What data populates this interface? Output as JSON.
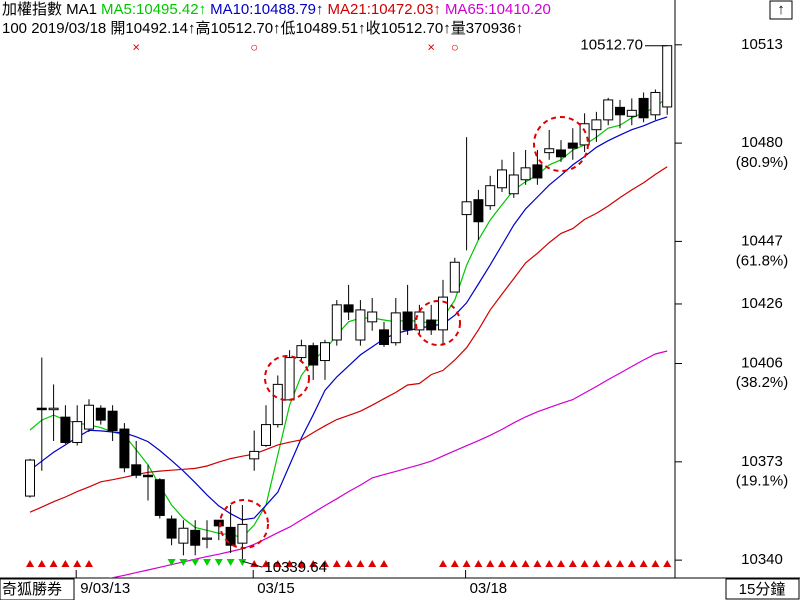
{
  "chart_data": {
    "type": "candlestick",
    "title": "加權指數 MA1",
    "info": "100 2019/03/18 開10492.14↑高10512.70↑低10489.51↑收10512.70↑量370936↑",
    "button_label": "↑",
    "source": "奇狐勝券",
    "interval": "15分鐘",
    "categories": [
      null,
      null,
      null,
      null,
      "9/03/13",
      null,
      null,
      null,
      null,
      null,
      null,
      null,
      null,
      null,
      null,
      null,
      null,
      null,
      null,
      "03/15",
      null,
      null,
      null,
      null,
      null,
      null,
      null,
      null,
      null,
      null,
      null,
      null,
      null,
      null,
      null,
      null,
      null,
      "03/18",
      null,
      null,
      null,
      null,
      null,
      null,
      null,
      null,
      null,
      null,
      null,
      null,
      null,
      null,
      null,
      null,
      null
    ],
    "top_marks": [
      null,
      null,
      null,
      null,
      null,
      null,
      null,
      null,
      null,
      "×",
      null,
      null,
      null,
      null,
      null,
      null,
      null,
      null,
      null,
      "○",
      null,
      null,
      null,
      null,
      null,
      null,
      null,
      null,
      null,
      null,
      null,
      null,
      null,
      null,
      "×",
      null,
      "○",
      null,
      null,
      null,
      null,
      null,
      null,
      null,
      null,
      null,
      null,
      null,
      null,
      null,
      null,
      null,
      null,
      null,
      null
    ],
    "open": [
      10361.5,
      10391,
      10390.5,
      10388,
      10379.5,
      10384,
      10391,
      10390,
      10384,
      10372,
      10368.5,
      10367,
      10353.8,
      10345.7,
      10350,
      10347,
      10353.4,
      10351,
      10345.7,
      10374,
      10378.5,
      10385.5,
      10393.8,
      10408,
      10412,
      10407,
      10413.9,
      10425.7,
      10413.9,
      10420,
      10417.3,
      10413,
      10423.3,
      10417.3,
      10420.6,
      10417.3,
      10430,
      10456,
      10461,
      10459,
      10465,
      10463,
      10467.7,
      10472.7,
      10476.8,
      10477.7,
      10480,
      10479.4,
      10484.5,
      10487.8,
      10492,
      10489,
      10495,
      10489.5,
      10492.14
    ],
    "high": [
      10374,
      10408,
      10399,
      10392,
      10392,
      10394,
      10392,
      10392,
      10386,
      10380,
      10372,
      10367.5,
      10355,
      10353.4,
      10353.4,
      10353.4,
      10353.4,
      10358.5,
      10358.5,
      10383.5,
      10392,
      10402,
      10410.5,
      10414,
      10413,
      10414,
      10427.3,
      10432.4,
      10427.3,
      10428,
      10420,
      10428,
      10432.4,
      10425.7,
      10425.7,
      10434.1,
      10441.5,
      10482,
      10464.3,
      10469,
      10474.4,
      10477,
      10477.7,
      10477.7,
      10484.4,
      10481,
      10485,
      10490,
      10490.5,
      10495.2,
      10494.5,
      10495,
      10497,
      10498,
      10512.7
    ],
    "low": [
      10361,
      10370,
      10380,
      10379,
      10378.5,
      10383,
      10385.5,
      10380,
      10369.5,
      10367.5,
      10360,
      10354,
      10345,
      10341.6,
      10341.6,
      10344,
      10346.7,
      10342.4,
      10339.64,
      10370,
      10378,
      10384.5,
      10393.8,
      10407,
      10400.5,
      10400.5,
      10412,
      10420.6,
      10412,
      10417,
      10411.6,
      10412,
      10415.6,
      10415.6,
      10415.6,
      10412,
      10430,
      10444,
      10447.5,
      10457.6,
      10463.6,
      10461.6,
      10466,
      10466,
      10474.4,
      10473.7,
      10474.4,
      10477,
      10480.4,
      10486,
      10485,
      10486,
      10487,
      10487.8,
      10489.51
    ],
    "close": [
      10373.6,
      10390.5,
      10391,
      10379.5,
      10386.5,
      10392,
      10387,
      10383.5,
      10371,
      10368.5,
      10368,
      10355,
      10347.4,
      10350.7,
      10345,
      10347.4,
      10351.5,
      10345,
      10352,
      10376.5,
      10385.5,
      10399,
      10408,
      10412,
      10405.5,
      10413,
      10425.7,
      10423.3,
      10424,
      10423.3,
      10412.4,
      10423,
      10417.3,
      10423.3,
      10417.3,
      10428.3,
      10440,
      10460.3,
      10453.6,
      10465.7,
      10471,
      10469.3,
      10471.7,
      10468.3,
      10478.1,
      10475.4,
      10478.3,
      10486.5,
      10487.8,
      10494.5,
      10489.5,
      10491,
      10488.5,
      10497,
      10512.7
    ],
    "signals": [
      1,
      1,
      1,
      1,
      1,
      1,
      null,
      null,
      null,
      null,
      null,
      null,
      -1,
      -1,
      -1,
      -1,
      -1,
      -1,
      -1,
      1,
      1,
      1,
      1,
      1,
      1,
      1,
      1,
      1,
      1,
      1,
      1,
      null,
      null,
      null,
      null,
      1,
      1,
      1,
      1,
      1,
      1,
      1,
      1,
      1,
      1,
      1,
      1,
      1,
      1,
      1,
      1,
      1,
      1,
      1,
      1
    ],
    "series": [
      {
        "name": "MA5:10495.42↑",
        "color": "#00c800",
        "values": [
          10383.7,
          10387,
          10388.7,
          10387,
          10386,
          10385.4,
          10384.5,
          10383,
          10382,
          10377,
          10372,
          10365,
          10358.5,
          10354,
          10351,
          10350,
          10349,
          10348.5,
          10347.7,
          10351.8,
          10358.5,
          10375.3,
          10392,
          10402,
          10407.2,
          10410.5,
          10415.6,
          10420,
          10421.3,
          10421.3,
          10420.6,
          10420,
          10420.6,
          10420,
          10419.7,
          10421.3,
          10427.3,
          10439,
          10447.5,
          10454.2,
          10459.3,
          10464.3,
          10467,
          10469.3,
          10472.7,
          10474.4,
          10477.7,
          10479.4,
          10482,
          10485,
          10486,
          10488.5,
          10490.2,
          10492,
          10495.42
        ]
      },
      {
        "name": "MA10:10488.79↑",
        "color": "#0000c8",
        "values": [
          10370.2,
          10373.2,
          10376.2,
          10378.7,
          10381.2,
          10383.6,
          10383.4,
          10383,
          10382.7,
          10381.4,
          10379.8,
          10376.8,
          10373.4,
          10369.9,
          10366,
          10361.9,
          10358.2,
          10355.6,
          10353.5,
          10354.1,
          10358.4,
          10362.8,
          10371.9,
          10381,
          10388.8,
          10397,
          10401.5,
          10405.2,
          10408.9,
          10411.6,
          10414.3,
          10416.1,
          10417.1,
          10417.9,
          10418.6,
          10419.3,
          10422.2,
          10426.4,
          10432.7,
          10439.1,
          10445.8,
          10452.5,
          10457.9,
          10461.9,
          10465.9,
          10469.2,
          10472.7,
          10475.5,
          10478.6,
          10480.8,
          10482.7,
          10484.5,
          10485.8,
          10487.5,
          10488.79
        ]
      },
      {
        "name": "MA21:10472.03↑",
        "color": "#d00000",
        "values": [
          10356.1,
          10357.8,
          10359.6,
          10361.2,
          10363,
          10364.6,
          10366.3,
          10367,
          10367.8,
          10368.7,
          10369.5,
          10369.9,
          10370.2,
          10370.5,
          10370.8,
          10371.6,
          10372.9,
          10374.1,
          10374.9,
          10375.6,
          10377.1,
          10378.7,
          10379.6,
          10380.4,
          10382.8,
          10385.1,
          10387.2,
          10388.6,
          10390,
          10392,
          10394.2,
          10396.3,
          10398.8,
          10399.3,
          10402.3,
          10403.7,
          10407.2,
          10411.3,
          10417.3,
          10424,
          10429.3,
          10434.5,
          10439.8,
          10443,
          10446.6,
          10449.7,
          10451.3,
          10454.4,
          10456.4,
          10458.9,
          10461.7,
          10464.3,
          10466.7,
          10469.5,
          10472.03
        ]
      },
      {
        "name": "MA65:10410.20",
        "color": "#d000d0",
        "values": [
          10327.9,
          10328.8,
          10329.7,
          10330.5,
          10331.4,
          10332.3,
          10333.2,
          10334.1,
          10334.9,
          10335.8,
          10336.7,
          10337.6,
          10338.5,
          10339.4,
          10340.3,
          10341.2,
          10342,
          10342.9,
          10343.8,
          10345.3,
          10347.2,
          10349.2,
          10351.1,
          10353.5,
          10355.9,
          10358.3,
          10360.6,
          10363,
          10365.2,
          10367.6,
          10368.7,
          10369.8,
          10370.9,
          10372,
          10373.2,
          10375,
          10376.7,
          10378.4,
          10380.1,
          10381.9,
          10383.9,
          10386.1,
          10388.1,
          10389.8,
          10391.2,
          10392.6,
          10393.9,
          10396.1,
          10398.3,
          10400.6,
          10402.8,
          10405,
          10407.2,
          10409.2,
          10410.2
        ]
      }
    ],
    "ylim": [
      10334,
      10522
    ],
    "yticks": [
      10340,
      10373,
      10406,
      10426,
      10447,
      10480,
      10513
    ],
    "retracement": [
      {
        "value": 19.1,
        "label": "(19.1%)"
      },
      {
        "value": 38.2,
        "label": "(38.2%)"
      },
      {
        "value": 61.8,
        "label": "(61.8%)"
      },
      {
        "value": 80.9,
        "label": "(80.9%)"
      }
    ],
    "extremes": {
      "high": {
        "value": 10512.7,
        "label": "10512.70"
      },
      "low": 10339.64
    },
    "up_color": "#ffffff",
    "down_color": "#000000",
    "signal_colors": {
      "up": "#e00000",
      "down": "#00d000"
    }
  }
}
